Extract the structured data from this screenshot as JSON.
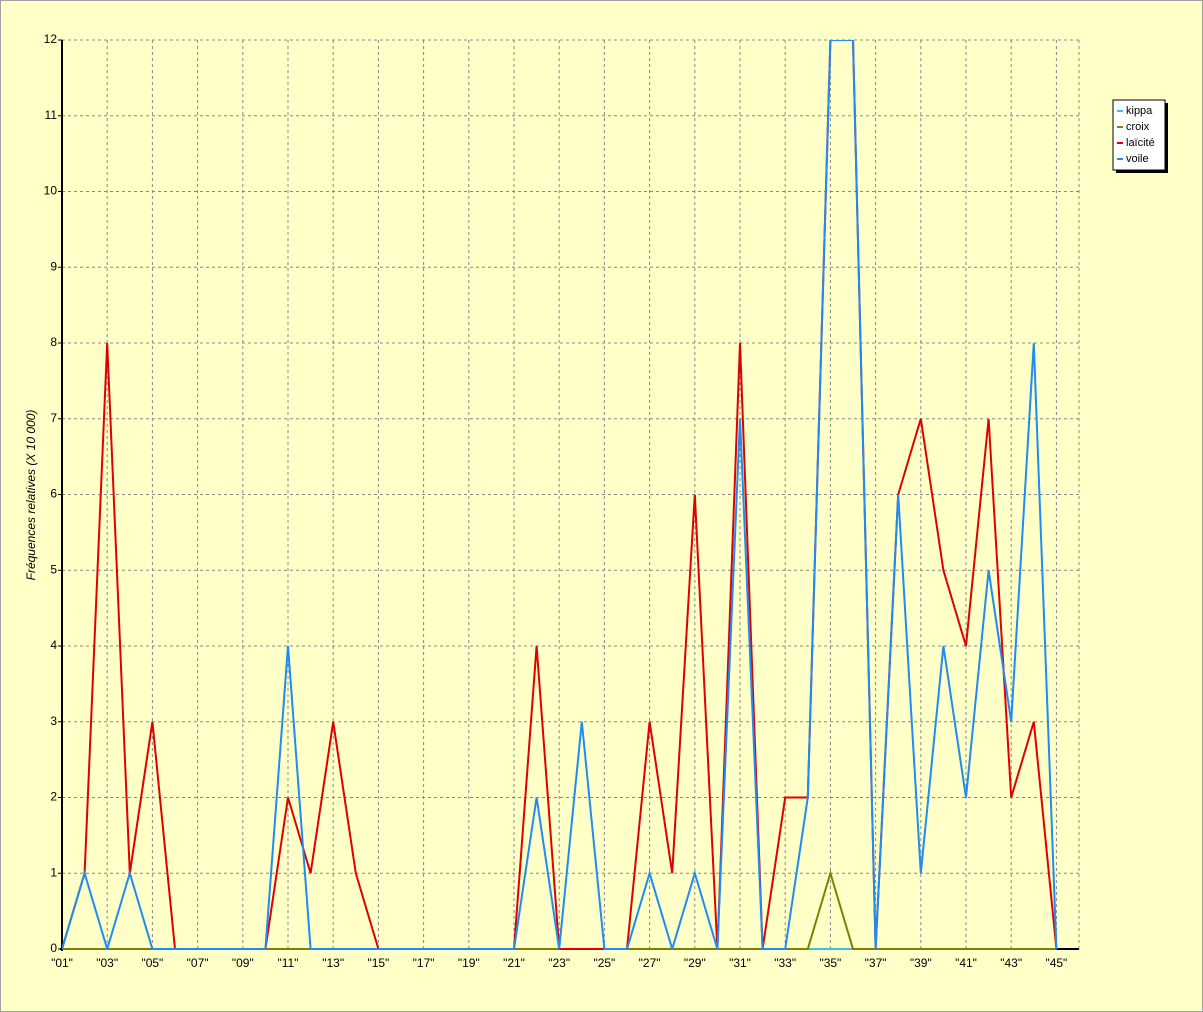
{
  "chart_data": {
    "type": "line",
    "y_label": "Fréquences relatives (X 10 000)",
    "categories": [
      "\"01\"",
      null,
      "\"03\"",
      null,
      "\"05\"",
      null,
      "\"07\"",
      null,
      "\"09\"",
      null,
      "\"11\"",
      null,
      "\"13\"",
      null,
      "\"15\"",
      null,
      "\"17\"",
      null,
      "\"19\"",
      null,
      "\"21\"",
      null,
      "\"23\"",
      null,
      "\"25\"",
      null,
      "\"27\"",
      null,
      "\"29\"",
      null,
      "\"31\"",
      null,
      "\"33\"",
      null,
      "\"35\"",
      null,
      "\"37\"",
      null,
      "\"39\"",
      null,
      "\"41\"",
      null,
      "\"43\"",
      null,
      "\"45\""
    ],
    "series": [
      {
        "name": "kippa",
        "color": "#40c0e0",
        "values": [
          0,
          0,
          0,
          0,
          0,
          0,
          0,
          0,
          0,
          0,
          0,
          0,
          0,
          0,
          0,
          0,
          0,
          0,
          0,
          0,
          0,
          0,
          0,
          0,
          0,
          0,
          0,
          0,
          0,
          0,
          0,
          0,
          0,
          0,
          0,
          0,
          0,
          0,
          0,
          0,
          0,
          0,
          0,
          0,
          0
        ]
      },
      {
        "name": "croix",
        "color": "#808000",
        "values": [
          0,
          0,
          0,
          0,
          0,
          0,
          0,
          0,
          0,
          0,
          0,
          0,
          0,
          0,
          0,
          0,
          0,
          0,
          0,
          0,
          0,
          0,
          0,
          0,
          0,
          0,
          0,
          0,
          0,
          0,
          0,
          0,
          0,
          0,
          1,
          0,
          0,
          0,
          0,
          0,
          0,
          0,
          0,
          0,
          0
        ]
      },
      {
        "name": "laïcité",
        "color": "#e00000",
        "values": [
          0,
          1,
          8,
          1,
          3,
          0,
          0,
          0,
          0,
          0,
          2,
          1,
          3,
          1,
          0,
          0,
          0,
          0,
          0,
          0,
          0,
          4,
          0,
          0,
          0,
          0,
          3,
          1,
          6,
          0,
          8,
          0,
          2,
          2,
          12,
          12,
          0,
          6,
          7,
          5,
          4,
          7,
          2,
          3,
          0
        ]
      },
      {
        "name": "voile",
        "color": "#1e8cf0",
        "values": [
          0,
          1,
          0,
          1,
          0,
          0,
          0,
          0,
          0,
          0,
          4,
          0,
          0,
          0,
          0,
          0,
          0,
          0,
          0,
          0,
          0,
          2,
          0,
          3,
          0,
          0,
          1,
          0,
          1,
          0,
          7,
          0,
          0,
          2,
          12,
          12,
          0,
          6,
          1,
          4,
          2,
          5,
          3,
          8,
          0
        ]
      }
    ],
    "ylim": [
      0,
      12
    ],
    "yticks": [
      0,
      1,
      2,
      3,
      4,
      5,
      6,
      7,
      8,
      9,
      10,
      11,
      12
    ],
    "grid": true,
    "legend": "right"
  }
}
